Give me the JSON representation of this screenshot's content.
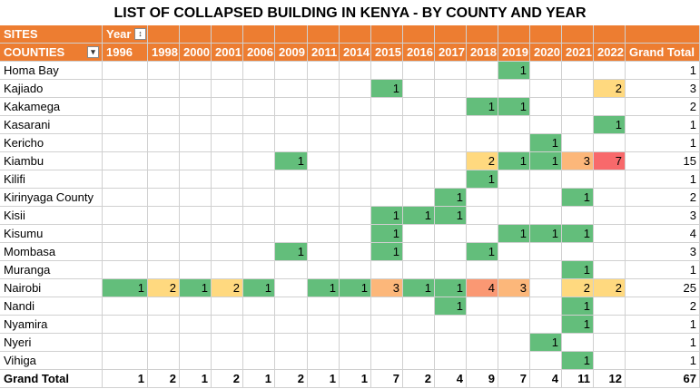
{
  "title": "LIST OF COLLAPSED BUILDING IN KENYA - BY COUNTY AND YEAR",
  "sites_label": "SITES",
  "year_label": "Year",
  "counties_label": "COUNTIES",
  "grand_total_label": "Grand Total",
  "years": [
    "1996",
    "1998",
    "2000",
    "2001",
    "2006",
    "2009",
    "2011",
    "2014",
    "2015",
    "2016",
    "2017",
    "2018",
    "2019",
    "2020",
    "2021",
    "2022"
  ],
  "icons": {
    "year_filter": "filter-sort-icon",
    "counties_filter": "dropdown-arrow-icon"
  },
  "colors": {
    "header": "#ed7d31",
    "green": "#63be7b",
    "yellow": "#ffd97f",
    "light_orange": "#fcb77a",
    "salmon": "#fa9873",
    "red": "#f8696b"
  },
  "rows": [
    {
      "county": "Homa Bay",
      "values": [
        "",
        "",
        "",
        "",
        "",
        "",
        "",
        "",
        "",
        "",
        "",
        "",
        "1",
        "",
        "",
        ""
      ],
      "total": "1"
    },
    {
      "county": "Kajiado",
      "values": [
        "",
        "",
        "",
        "",
        "",
        "",
        "",
        "",
        "1",
        "",
        "",
        "",
        "",
        "",
        "",
        "2"
      ],
      "total": "3"
    },
    {
      "county": "Kakamega",
      "values": [
        "",
        "",
        "",
        "",
        "",
        "",
        "",
        "",
        "",
        "",
        "",
        "1",
        "1",
        "",
        "",
        ""
      ],
      "total": "2"
    },
    {
      "county": "Kasarani",
      "values": [
        "",
        "",
        "",
        "",
        "",
        "",
        "",
        "",
        "",
        "",
        "",
        "",
        "",
        "",
        "",
        "1"
      ],
      "total": "1"
    },
    {
      "county": "Kericho",
      "values": [
        "",
        "",
        "",
        "",
        "",
        "",
        "",
        "",
        "",
        "",
        "",
        "",
        "",
        "1",
        "",
        ""
      ],
      "total": "1"
    },
    {
      "county": "Kiambu",
      "values": [
        "",
        "",
        "",
        "",
        "",
        "1",
        "",
        "",
        "",
        "",
        "",
        "2",
        "1",
        "1",
        "3",
        "7"
      ],
      "total": "15"
    },
    {
      "county": "Kilifi",
      "values": [
        "",
        "",
        "",
        "",
        "",
        "",
        "",
        "",
        "",
        "",
        "",
        "1",
        "",
        "",
        "",
        ""
      ],
      "total": "1"
    },
    {
      "county": "Kirinyaga County",
      "values": [
        "",
        "",
        "",
        "",
        "",
        "",
        "",
        "",
        "",
        "",
        "1",
        "",
        "",
        "",
        "1",
        ""
      ],
      "total": "2"
    },
    {
      "county": "Kisii",
      "values": [
        "",
        "",
        "",
        "",
        "",
        "",
        "",
        "",
        "1",
        "1",
        "1",
        "",
        "",
        "",
        "",
        ""
      ],
      "total": "3"
    },
    {
      "county": "Kisumu",
      "values": [
        "",
        "",
        "",
        "",
        "",
        "",
        "",
        "",
        "1",
        "",
        "",
        "",
        "1",
        "1",
        "1",
        ""
      ],
      "total": "4"
    },
    {
      "county": "Mombasa",
      "values": [
        "",
        "",
        "",
        "",
        "",
        "1",
        "",
        "",
        "1",
        "",
        "",
        "1",
        "",
        "",
        "",
        ""
      ],
      "total": "3"
    },
    {
      "county": "Muranga",
      "values": [
        "",
        "",
        "",
        "",
        "",
        "",
        "",
        "",
        "",
        "",
        "",
        "",
        "",
        "",
        "1",
        ""
      ],
      "total": "1"
    },
    {
      "county": "Nairobi",
      "values": [
        "1",
        "2",
        "1",
        "2",
        "1",
        "",
        "1",
        "1",
        "3",
        "1",
        "1",
        "4",
        "3",
        "",
        "2",
        "2"
      ],
      "total": "25"
    },
    {
      "county": "Nandi",
      "values": [
        "",
        "",
        "",
        "",
        "",
        "",
        "",
        "",
        "",
        "",
        "1",
        "",
        "",
        "",
        "1",
        ""
      ],
      "total": "2"
    },
    {
      "county": "Nyamira",
      "values": [
        "",
        "",
        "",
        "",
        "",
        "",
        "",
        "",
        "",
        "",
        "",
        "",
        "",
        "",
        "1",
        ""
      ],
      "total": "1"
    },
    {
      "county": "Nyeri",
      "values": [
        "",
        "",
        "",
        "",
        "",
        "",
        "",
        "",
        "",
        "",
        "",
        "",
        "",
        "1",
        "",
        ""
      ],
      "total": "1"
    },
    {
      "county": "Vihiga",
      "values": [
        "",
        "",
        "",
        "",
        "",
        "",
        "",
        "",
        "",
        "",
        "",
        "",
        "",
        "",
        "1",
        ""
      ],
      "total": "1"
    }
  ],
  "grand_total_row": {
    "values": [
      "1",
      "2",
      "1",
      "2",
      "1",
      "2",
      "1",
      "1",
      "7",
      "2",
      "4",
      "9",
      "7",
      "4",
      "11",
      "12"
    ],
    "total": "67"
  }
}
